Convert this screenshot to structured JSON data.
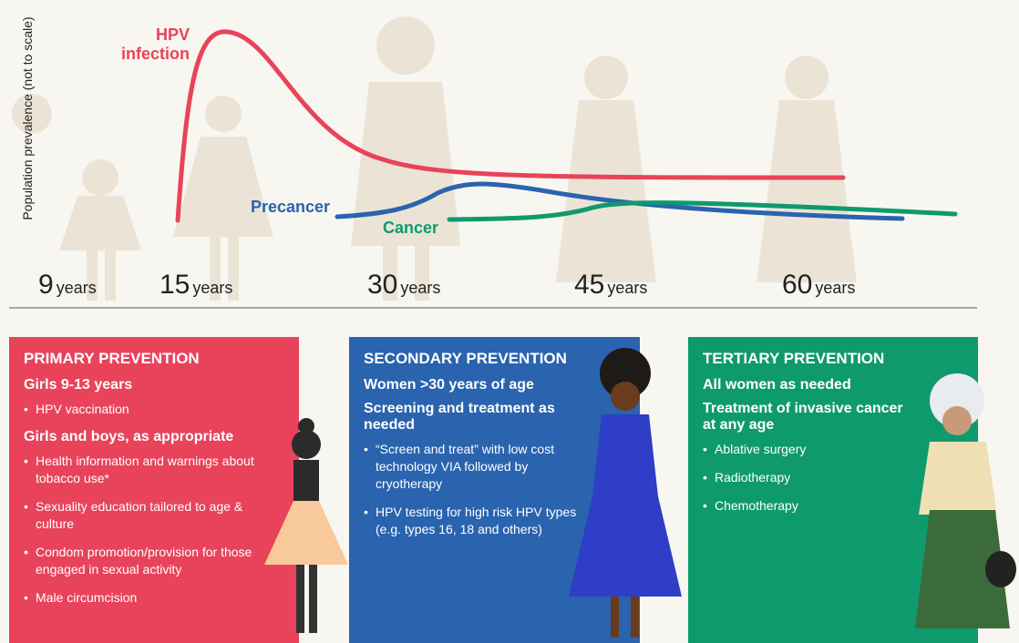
{
  "chart": {
    "y_axis_label": "Population prevalence (not to scale)",
    "curves": [
      {
        "label": "HPV infection"
      },
      {
        "label": "Precancer"
      },
      {
        "label": "Cancer"
      }
    ],
    "ages": [
      {
        "number": "9",
        "unit": "years"
      },
      {
        "number": "15",
        "unit": "years"
      },
      {
        "number": "30",
        "unit": "years"
      },
      {
        "number": "45",
        "unit": "years"
      },
      {
        "number": "60",
        "unit": "years"
      }
    ]
  },
  "panels": [
    {
      "title": "PRIMARY PREVENTION",
      "sections": [
        {
          "heading": "Girls 9-13 years",
          "bullets": [
            "HPV vaccination"
          ]
        },
        {
          "heading": "Girls and boys, as appropriate",
          "bullets": [
            "Health information and warnings about tobacco use*",
            "Sexuality education tailored to age & culture",
            "Condom promotion/provision for those engaged in sexual activity",
            "Male circumcision"
          ]
        }
      ]
    },
    {
      "title": "SECONDARY PREVENTION",
      "sections": [
        {
          "heading": "Women >30 years of age",
          "bullets": []
        },
        {
          "heading": "Screening and treatment as needed",
          "bullets": [
            "“Screen and treat” with low cost technology VIA followed by cryotherapy",
            "HPV testing for high risk HPV types (e.g. types 16, 18 and others)"
          ]
        }
      ]
    },
    {
      "title": "TERTIARY PREVENTION",
      "sections": [
        {
          "heading": "All women as needed",
          "bullets": []
        },
        {
          "heading": "Treatment of invasive cancer at any age",
          "bullets": [
            "Ablative surgery",
            "Radiotherapy",
            "Chemotherapy"
          ]
        }
      ]
    }
  ]
}
